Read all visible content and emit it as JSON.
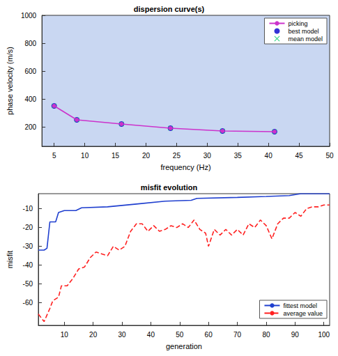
{
  "chart_data": [
    {
      "type": "line",
      "title": "dispersion curve(s)",
      "x_label": "frequency (Hz)",
      "y_label": "phase velocity (m/s)",
      "xlim": [
        3,
        50
      ],
      "xticks": [
        5,
        10,
        15,
        20,
        25,
        30,
        35,
        40,
        45,
        50
      ],
      "ylim": [
        60,
        1000
      ],
      "yticks": [
        200,
        400,
        600,
        800,
        1000
      ],
      "grid": false,
      "legend": "top-right",
      "series": [
        {
          "name": "picking",
          "type": "line",
          "color": "#cc33cc",
          "marker": "circle",
          "line_style": "solid",
          "x": [
            5,
            8.7,
            16,
            24,
            32.5,
            41
          ],
          "values": [
            350,
            250,
            220,
            190,
            170,
            165
          ]
        },
        {
          "name": "best model",
          "type": "scatter",
          "color": "#0000cc",
          "marker": "circle",
          "x": [
            5,
            8.7,
            16,
            24,
            32.5,
            41
          ],
          "values": [
            350,
            250,
            220,
            190,
            170,
            165
          ]
        },
        {
          "name": "mean model",
          "type": "scatter",
          "color": "#00cc66",
          "marker": "x",
          "x": [
            5,
            8.7,
            16,
            24,
            32.5,
            41
          ],
          "values": [
            350,
            250,
            220,
            190,
            170,
            165
          ]
        }
      ]
    },
    {
      "type": "line",
      "title": "misfit evolution",
      "x_label": "generation",
      "y_label": "misfit",
      "xlim": [
        1,
        102
      ],
      "xticks": [
        10,
        20,
        30,
        40,
        50,
        60,
        70,
        80,
        90,
        100
      ],
      "ylim": [
        -72,
        -2
      ],
      "yticks": [
        -60,
        -50,
        -40,
        -30,
        -20,
        -10
      ],
      "grid": false,
      "legend": "bottom-right",
      "series": [
        {
          "name": "fittest model",
          "color": "#1f3fcf",
          "line_style": "solid",
          "x": [
            1,
            3,
            4,
            5,
            7,
            8,
            10,
            14,
            16,
            25,
            35,
            45,
            54,
            56,
            70,
            80,
            88,
            92,
            102
          ],
          "values": [
            -32,
            -32,
            -31,
            -17,
            -17,
            -12,
            -11,
            -11,
            -9.5,
            -9,
            -7.5,
            -6,
            -5.5,
            -4.5,
            -4,
            -3.5,
            -3,
            -2,
            -2
          ]
        },
        {
          "name": "average value",
          "color": "#ff2020",
          "line_style": "dashed",
          "x": [
            1,
            3,
            5,
            6,
            8,
            9,
            11,
            13,
            15,
            17,
            19,
            21,
            23,
            25,
            27,
            29,
            31,
            33,
            35,
            37,
            39,
            41,
            43,
            45,
            47,
            49,
            51,
            53,
            55,
            57,
            59,
            60,
            62,
            64,
            66,
            68,
            70,
            72,
            74,
            76,
            78,
            80,
            82,
            84,
            86,
            88,
            90,
            92,
            94,
            96,
            98,
            100,
            102
          ],
          "values": [
            -66,
            -70,
            -63,
            -59,
            -57,
            -51,
            -51,
            -47,
            -42,
            -41,
            -36,
            -33,
            -34,
            -35,
            -30,
            -32,
            -30,
            -22,
            -18,
            -18,
            -22,
            -19,
            -22,
            -21,
            -19,
            -20,
            -18,
            -20,
            -16,
            -21,
            -23,
            -30,
            -21,
            -24,
            -21,
            -24,
            -21,
            -24,
            -18,
            -20,
            -16,
            -19,
            -26,
            -18,
            -15,
            -15,
            -12,
            -14,
            -10,
            -9,
            -9,
            -8,
            -8
          ]
        }
      ]
    }
  ]
}
